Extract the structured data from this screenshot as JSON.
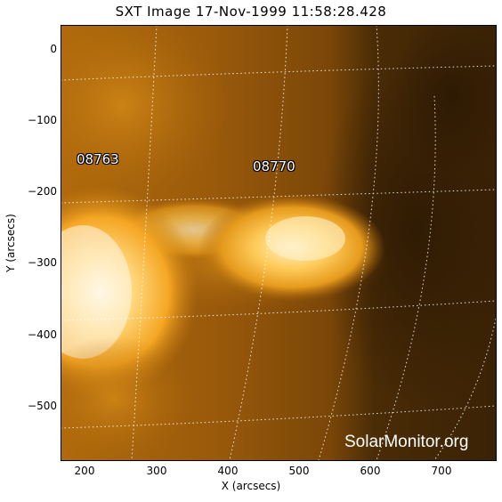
{
  "title": "SXT Image 17-Nov-1999 11:58:28.428",
  "x_axis": {
    "label": "X (arcsecs)",
    "ticks": [
      "200",
      "300",
      "400",
      "500",
      "600",
      "700"
    ]
  },
  "y_axis": {
    "label": "Y (arcsecs)",
    "ticks": [
      "0",
      "−100",
      "−200",
      "−300",
      "−400",
      "−500"
    ]
  },
  "regions": [
    {
      "id": "08763"
    },
    {
      "id": "08770"
    }
  ],
  "watermark": "SolarMonitor.org",
  "colors": {
    "background_dark": "#3d2506",
    "corona_mid": "#a8650c",
    "corona_bright": "#ffc64a",
    "core_white": "#fff3d6",
    "grid": "#ffffff"
  }
}
